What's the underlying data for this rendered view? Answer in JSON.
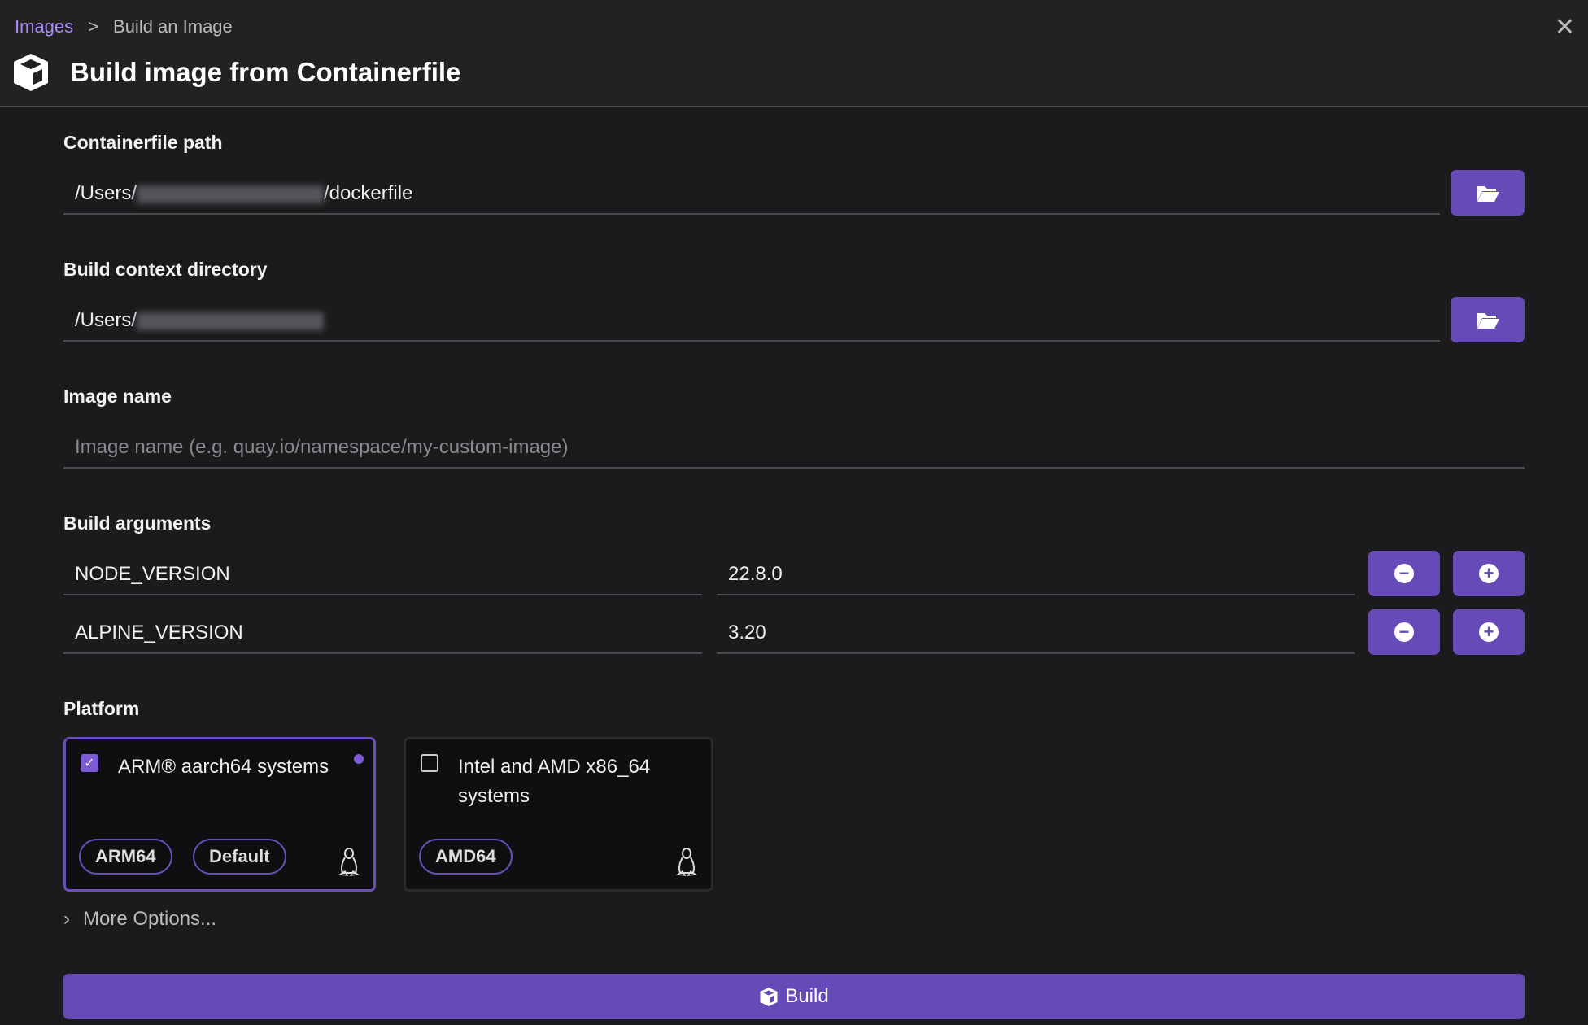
{
  "header": {
    "breadcrumb": {
      "parent": "Images",
      "separator": ">",
      "current": "Build an Image"
    },
    "title": "Build image from Containerfile",
    "icon": "cube-icon",
    "close_icon": "close-icon"
  },
  "form": {
    "containerfile": {
      "label": "Containerfile path",
      "value_prefix": "/Users/",
      "value_suffix": "/dockerfile",
      "button_icon": "folder-open-icon"
    },
    "context": {
      "label": "Build context directory",
      "value_prefix": "/Users/",
      "button_icon": "folder-open-icon"
    },
    "image_name": {
      "label": "Image name",
      "placeholder": "Image name (e.g. quay.io/namespace/my-custom-image)"
    },
    "build_args": {
      "label": "Build arguments",
      "rows": [
        {
          "key": "NODE_VERSION",
          "value": "22.8.0"
        },
        {
          "key": "ALPINE_VERSION",
          "value": "3.20"
        }
      ]
    },
    "platform": {
      "label": "Platform",
      "options": [
        {
          "label": "ARM® aarch64 systems",
          "checked": true,
          "chips": [
            "ARM64",
            "Default"
          ],
          "icon": "linux-tux-icon"
        },
        {
          "label": "Intel and AMD x86_64 systems",
          "checked": false,
          "chips": [
            "AMD64"
          ],
          "icon": "linux-tux-icon"
        }
      ]
    },
    "more_options": "More Options...",
    "build_button": "Build"
  },
  "colors": {
    "accent": "#664ab8",
    "link": "#a98bf5",
    "background": "#1b1b1d",
    "header": "#222222"
  }
}
